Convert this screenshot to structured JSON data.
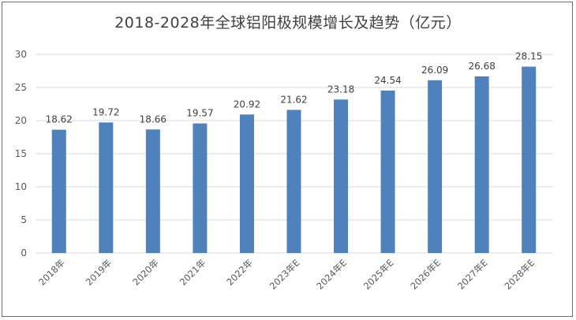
{
  "chart_data": {
    "type": "bar",
    "title": "2018-2028年全球铝阳极规模增长及趋势（亿元）",
    "categories": [
      "2018年",
      "2019年",
      "2020年",
      "2021年",
      "2022年",
      "2023年E",
      "2024年E",
      "2025年E",
      "2026年E",
      "2027年E",
      "2028年E"
    ],
    "values": [
      18.62,
      19.72,
      18.66,
      19.57,
      20.92,
      21.62,
      23.18,
      24.54,
      26.09,
      26.68,
      28.15
    ],
    "value_labels": [
      "18.62",
      "19.72",
      "18.66",
      "19.57",
      "20.92",
      "21.62",
      "23.18",
      "24.54",
      "26.09",
      "26.68",
      "28.15"
    ],
    "ylim": [
      0,
      30
    ],
    "yticks": [
      0,
      5,
      10,
      15,
      20,
      25,
      30
    ],
    "grid": true,
    "legend": "none",
    "bar_color": "#4f81bd",
    "grid_color": "#d9d9d9"
  }
}
